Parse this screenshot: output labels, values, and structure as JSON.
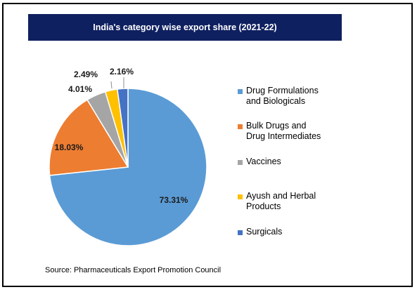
{
  "header": {
    "title": "India's category wise export share (2021-22)"
  },
  "source": "Source: Pharmaceuticals Export Promotion Council",
  "chart_data": {
    "type": "pie",
    "title": "India's category wise export share (2021-22)",
    "legend_position": "right",
    "slices": [
      {
        "label": "Drug Formulations\nand Biologicals",
        "value": 73.31,
        "display": "73.31%",
        "color": "#5b9bd5"
      },
      {
        "label": "Bulk Drugs and\nDrug Intermediates",
        "value": 18.03,
        "display": "18.03%",
        "color": "#ed7d31"
      },
      {
        "label": "Vaccines",
        "value": 4.01,
        "display": "4.01%",
        "color": "#a5a5a5"
      },
      {
        "label": "Ayush and Herbal\nProducts",
        "value": 2.49,
        "display": "2.49%",
        "color": "#ffc000"
      },
      {
        "label": "Surgicals",
        "value": 2.16,
        "display": "2.16%",
        "color": "#4472c4"
      }
    ]
  }
}
